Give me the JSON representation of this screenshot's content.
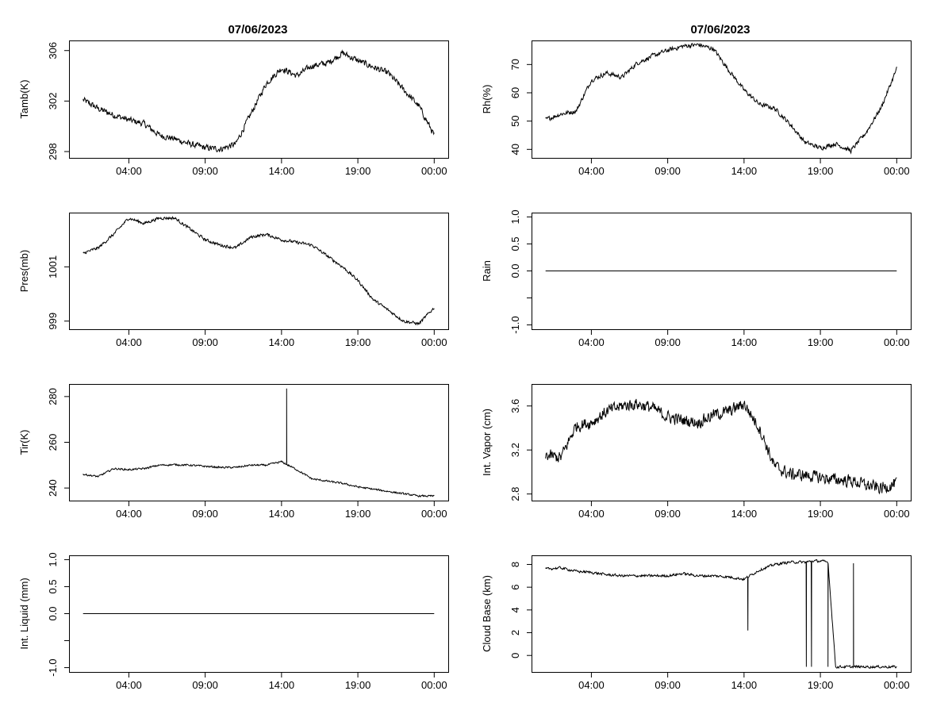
{
  "figure": {
    "titles": [
      "07/06/2023",
      "07/06/2023"
    ]
  },
  "chart_data": [
    {
      "type": "line",
      "panel": "left-1",
      "title": "07/06/2023",
      "xlabel": "",
      "ylabel": "Tamb(K)",
      "x_ticks": [
        "04:00",
        "09:00",
        "14:00",
        "19:00",
        "00:00"
      ],
      "y_ticks": [
        "298",
        "302",
        "306"
      ],
      "ylim": [
        297.5,
        306.8
      ],
      "x": [
        "01:00",
        "02:00",
        "03:00",
        "04:00",
        "05:00",
        "06:00",
        "07:00",
        "08:00",
        "09:00",
        "10:00",
        "11:00",
        "12:00",
        "13:00",
        "14:00",
        "15:00",
        "16:00",
        "17:00",
        "18:00",
        "19:00",
        "20:00",
        "21:00",
        "22:00",
        "23:00",
        "00:00"
      ],
      "values": [
        302.1,
        301.4,
        300.9,
        300.5,
        300.2,
        299.3,
        299.0,
        298.6,
        298.3,
        298.2,
        298.6,
        301.0,
        303.4,
        304.6,
        304.0,
        304.8,
        305.0,
        305.8,
        305.2,
        304.7,
        304.2,
        302.9,
        301.6,
        299.3
      ],
      "series": [
        {
          "name": "Tamb(K)",
          "noise": 0.22,
          "spikes": []
        }
      ]
    },
    {
      "type": "line",
      "panel": "right-1",
      "title": "07/06/2023",
      "xlabel": "",
      "ylabel": "Rh(%)",
      "x_ticks": [
        "04:00",
        "09:00",
        "14:00",
        "19:00",
        "00:00"
      ],
      "y_ticks": [
        "40",
        "50",
        "60",
        "70"
      ],
      "ylim": [
        37,
        78.5
      ],
      "x": [
        "01:00",
        "02:00",
        "03:00",
        "04:00",
        "05:00",
        "06:00",
        "07:00",
        "08:00",
        "09:00",
        "10:00",
        "11:00",
        "12:00",
        "13:00",
        "14:00",
        "15:00",
        "16:00",
        "17:00",
        "18:00",
        "19:00",
        "20:00",
        "21:00",
        "22:00",
        "23:00",
        "00:00"
      ],
      "values": [
        50.5,
        52.5,
        53.5,
        64.5,
        67.0,
        65.5,
        70.5,
        73.0,
        75.0,
        76.5,
        77.0,
        75.5,
        68.0,
        61.0,
        56.0,
        54.5,
        49.0,
        42.5,
        40.5,
        42.0,
        39.5,
        46.0,
        55.0,
        68.5
      ],
      "series": [
        {
          "name": "Rh(%)",
          "noise": 0.7,
          "spikes": []
        }
      ]
    },
    {
      "type": "line",
      "panel": "left-2",
      "xlabel": "",
      "ylabel": "Pres(mb)",
      "x_ticks": [
        "04:00",
        "09:00",
        "14:00",
        "19:00",
        "00:00"
      ],
      "y_ticks": [
        "999",
        "1001"
      ],
      "ylim": [
        998.7,
        1003.0
      ],
      "x": [
        "01:00",
        "02:00",
        "03:00",
        "04:00",
        "05:00",
        "06:00",
        "07:00",
        "08:00",
        "09:00",
        "10:00",
        "11:00",
        "12:00",
        "13:00",
        "14:00",
        "15:00",
        "16:00",
        "17:00",
        "18:00",
        "19:00",
        "20:00",
        "21:00",
        "22:00",
        "23:00",
        "00:00"
      ],
      "values": [
        1001.5,
        1001.7,
        1002.2,
        1002.8,
        1002.6,
        1002.8,
        1002.8,
        1002.4,
        1002.0,
        1001.8,
        1001.7,
        1002.1,
        1002.2,
        1002.0,
        1001.9,
        1001.8,
        1001.4,
        1001.0,
        1000.5,
        999.8,
        999.4,
        999.0,
        998.9,
        999.5
      ],
      "series": [
        {
          "name": "Pres(mb)",
          "noise": 0.05,
          "spikes": []
        }
      ]
    },
    {
      "type": "line",
      "panel": "right-2",
      "xlabel": "",
      "ylabel": "Rain",
      "x_ticks": [
        "04:00",
        "09:00",
        "14:00",
        "19:00",
        "00:00"
      ],
      "y_ticks": [
        "-1.0",
        "-0.5",
        "0.0",
        "0.5",
        "1.0"
      ],
      "y_tick_labels_shown": [
        "-1.0",
        "0.0",
        "0.5",
        "1.0"
      ],
      "ylim": [
        -1.08,
        1.08
      ],
      "x": [
        "01:00",
        "00:00"
      ],
      "values": [
        0.0,
        0.0
      ],
      "series": [
        {
          "name": "Rain",
          "noise": 0,
          "spikes": []
        }
      ]
    },
    {
      "type": "line",
      "panel": "left-3",
      "xlabel": "",
      "ylabel": "Tir(K)",
      "x_ticks": [
        "04:00",
        "09:00",
        "14:00",
        "19:00",
        "00:00"
      ],
      "y_ticks": [
        "240",
        "260",
        "280"
      ],
      "ylim": [
        234.5,
        285.5
      ],
      "x": [
        "01:00",
        "02:00",
        "03:00",
        "04:00",
        "05:00",
        "06:00",
        "07:00",
        "08:00",
        "09:00",
        "10:00",
        "11:00",
        "12:00",
        "13:00",
        "14:00",
        "15:00",
        "16:00",
        "17:00",
        "18:00",
        "19:00",
        "20:00",
        "21:00",
        "22:00",
        "23:00",
        "00:00"
      ],
      "values": [
        246.0,
        245.0,
        248.5,
        248.0,
        248.5,
        250.0,
        250.2,
        250.0,
        249.5,
        249.0,
        249.0,
        250.0,
        250.0,
        251.5,
        248.0,
        244.0,
        243.0,
        242.0,
        240.5,
        239.5,
        238.5,
        237.5,
        236.5,
        236.5
      ],
      "series": [
        {
          "name": "Tir(K)",
          "noise": 0.35,
          "spikes": [
            {
              "t": "14:20",
              "value": 283.5
            }
          ]
        }
      ]
    },
    {
      "type": "line",
      "panel": "right-3",
      "xlabel": "",
      "ylabel": "Int. Vapor (cm)",
      "x_ticks": [
        "04:00",
        "09:00",
        "14:00",
        "19:00",
        "00:00"
      ],
      "y_ticks": [
        "2.8",
        "3.2",
        "3.6"
      ],
      "ylim": [
        2.74,
        3.8
      ],
      "x": [
        "01:00",
        "02:00",
        "03:00",
        "04:00",
        "05:00",
        "06:00",
        "07:00",
        "08:00",
        "09:00",
        "10:00",
        "11:00",
        "12:00",
        "13:00",
        "14:00",
        "15:00",
        "16:00",
        "17:00",
        "18:00",
        "19:00",
        "20:00",
        "21:00",
        "22:00",
        "23:00",
        "00:00"
      ],
      "values": [
        3.15,
        3.13,
        3.42,
        3.45,
        3.55,
        3.6,
        3.62,
        3.58,
        3.5,
        3.47,
        3.45,
        3.52,
        3.55,
        3.62,
        3.4,
        3.05,
        2.98,
        2.97,
        2.95,
        2.93,
        2.92,
        2.88,
        2.85,
        2.9
      ],
      "series": [
        {
          "name": "Int. Vapor (cm)",
          "noise": 0.05,
          "spikes": []
        }
      ]
    },
    {
      "type": "line",
      "panel": "left-4",
      "xlabel": "",
      "ylabel": "Int. Liquid (mm)",
      "x_ticks": [
        "04:00",
        "09:00",
        "14:00",
        "19:00",
        "00:00"
      ],
      "y_ticks": [
        "-1.0",
        "-0.5",
        "0.0",
        "0.5",
        "1.0"
      ],
      "y_tick_labels_shown": [
        "-1.0",
        "0.0",
        "0.5",
        "1.0"
      ],
      "ylim": [
        -1.08,
        1.08
      ],
      "x": [
        "01:00",
        "00:00"
      ],
      "values": [
        0.0,
        0.0
      ],
      "series": [
        {
          "name": "Int. Liquid (mm)",
          "noise": 0,
          "spikes": []
        }
      ]
    },
    {
      "type": "line",
      "panel": "right-4",
      "xlabel": "",
      "ylabel": "Cloud Base (km)",
      "x_ticks": [
        "04:00",
        "09:00",
        "14:00",
        "19:00",
        "00:00"
      ],
      "y_ticks": [
        "0",
        "2",
        "4",
        "6",
        "8"
      ],
      "ylim": [
        -1.45,
        8.8
      ],
      "x": [
        "01:00",
        "02:00",
        "03:00",
        "04:00",
        "05:00",
        "06:00",
        "07:00",
        "08:00",
        "09:00",
        "10:00",
        "11:00",
        "12:00",
        "13:00",
        "14:00",
        "15:00",
        "16:00",
        "17:00",
        "18:00",
        "18:30",
        "19:00",
        "19:30",
        "20:00",
        "21:00",
        "22:00",
        "23:00",
        "00:00"
      ],
      "values": [
        7.6,
        7.7,
        7.4,
        7.3,
        7.1,
        7.0,
        7.0,
        7.0,
        7.0,
        7.2,
        7.0,
        7.0,
        6.9,
        6.7,
        7.5,
        8.0,
        8.2,
        8.2,
        8.3,
        8.3,
        8.2,
        -1.0,
        -1.0,
        -1.0,
        -1.0,
        -1.0
      ],
      "series": [
        {
          "name": "Cloud Base (km)",
          "noise": 0.1,
          "spikes": [
            {
              "t": "14:15",
              "value": 2.2
            },
            {
              "t": "18:05",
              "value": -1.0
            },
            {
              "t": "18:25",
              "value": -1.0
            },
            {
              "t": "19:30",
              "value": -1.0
            },
            {
              "t": "21:10",
              "value": 8.1
            }
          ]
        }
      ]
    }
  ]
}
